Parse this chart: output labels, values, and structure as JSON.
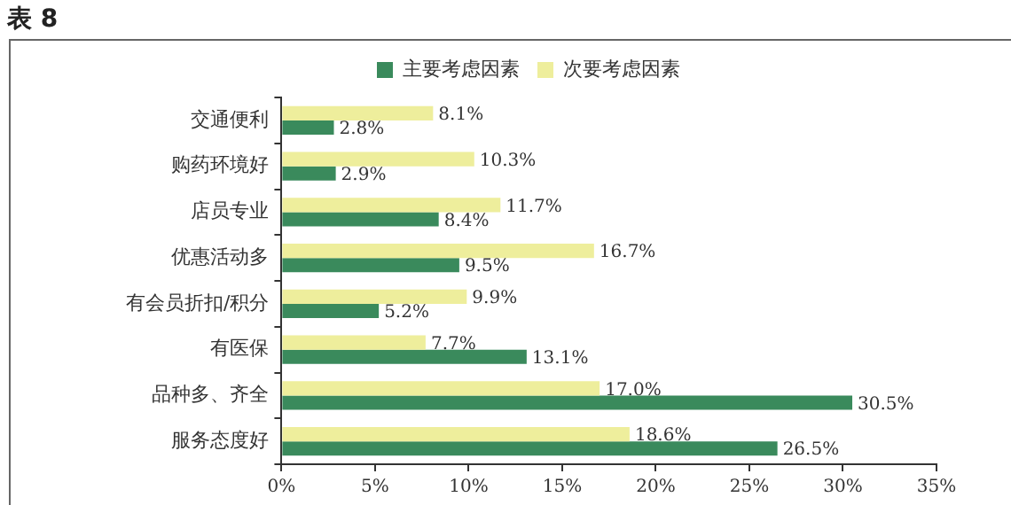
{
  "chart_data": {
    "type": "bar",
    "orientation": "horizontal",
    "title": "表 8",
    "categories": [
      "交通便利",
      "购药环境好",
      "店员专业",
      "优惠活动多",
      "有会员折扣/积分",
      "有医保",
      "品种多、齐全",
      "服务态度好"
    ],
    "series": [
      {
        "name": "次要考虑因素",
        "color": "#eeee9c",
        "values": [
          8.1,
          10.3,
          11.7,
          16.7,
          9.9,
          7.7,
          17.0,
          18.6
        ],
        "value_labels": [
          "8.1%",
          "10.3%",
          "11.7%",
          "16.7%",
          "9.9%",
          "7.7%",
          "17.0%",
          "18.6%"
        ]
      },
      {
        "name": "主要考虑因素",
        "color": "#3a8a5c",
        "values": [
          2.8,
          2.9,
          8.4,
          9.5,
          5.2,
          13.1,
          30.5,
          26.5
        ],
        "value_labels": [
          "2.8%",
          "2.9%",
          "8.4%",
          "9.5%",
          "5.2%",
          "13.1%",
          "30.5%",
          "26.5%"
        ]
      }
    ],
    "xlim": [
      0,
      35
    ],
    "xticks": [
      {
        "value": 0,
        "label": "0%"
      },
      {
        "value": 5,
        "label": "5%"
      },
      {
        "value": 10,
        "label": "10%"
      },
      {
        "value": 15,
        "label": "15%"
      },
      {
        "value": 20,
        "label": "20%"
      },
      {
        "value": 25,
        "label": "25%"
      },
      {
        "value": 30,
        "label": "30%"
      },
      {
        "value": 35,
        "label": "35%"
      }
    ],
    "grid": false,
    "legend": "top"
  }
}
